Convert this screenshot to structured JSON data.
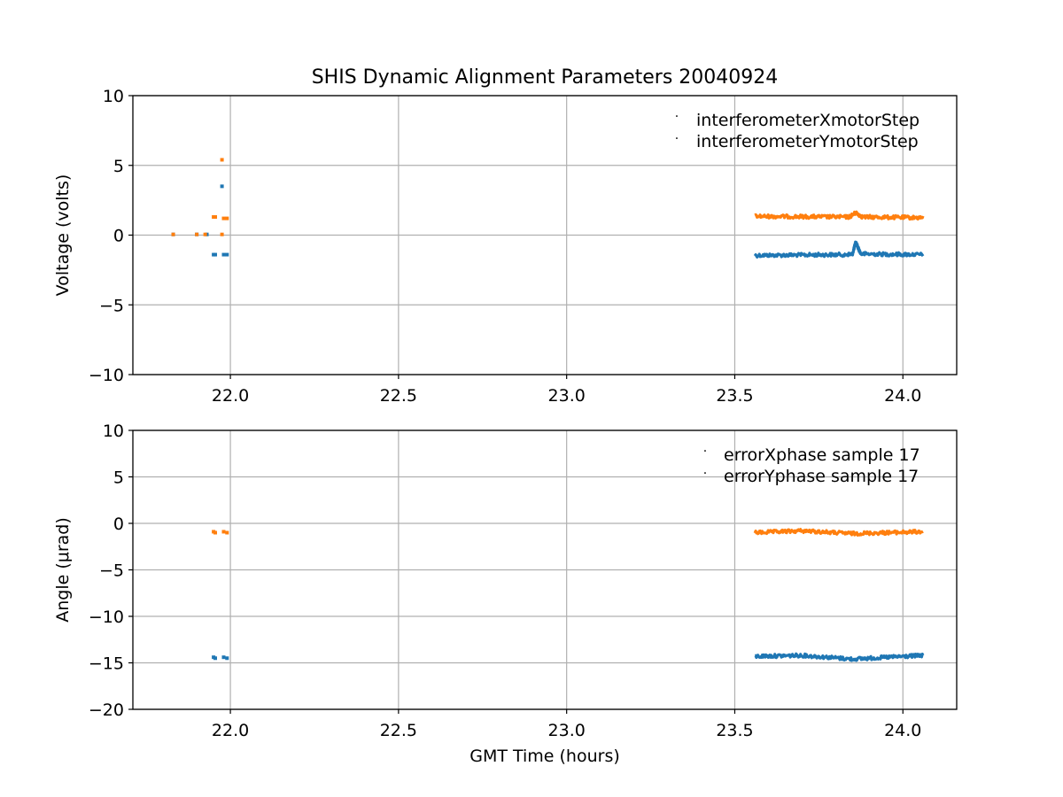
{
  "figure": {
    "title": "SHIS Dynamic Alignment Parameters 20040924",
    "colors": {
      "series1": "#1f77b4",
      "series2": "#ff7f0e",
      "grid": "#b0b0b0",
      "axis": "#000000"
    }
  },
  "chart_data": [
    {
      "type": "scatter",
      "xlabel": "",
      "ylabel": "Voltage (volts)",
      "xlim": [
        21.71,
        24.16
      ],
      "ylim": [
        -10,
        10
      ],
      "xticks": [
        "22.0",
        "22.5",
        "23.0",
        "23.5",
        "24.0"
      ],
      "yticks": [
        "10",
        "5",
        "0",
        "−5",
        "−10"
      ],
      "grid": true,
      "legend_position": "top-right",
      "series": [
        {
          "name": "interferometerXmotorStep",
          "points": [
            [
              21.83,
              0.05
            ],
            [
              21.9,
              0.05
            ],
            [
              21.93,
              0.05
            ],
            [
              21.95,
              -1.4
            ],
            [
              21.955,
              -1.4
            ],
            [
              21.975,
              3.5
            ],
            [
              21.98,
              -1.4
            ],
            [
              21.99,
              -1.4
            ]
          ],
          "segments": [
            {
              "x": [
                23.56,
                23.83
              ],
              "y": [
                -1.45,
                -1.4
              ]
            },
            {
              "x": [
                23.83,
                23.85
              ],
              "y": [
                -1.4,
                -1.35
              ]
            },
            {
              "x": [
                23.85,
                23.86
              ],
              "y": [
                -1.35,
                -0.5
              ]
            },
            {
              "x": [
                23.86,
                23.875
              ],
              "y": [
                -0.5,
                -1.35
              ]
            },
            {
              "x": [
                23.875,
                24.06
              ],
              "y": [
                -1.35,
                -1.4
              ]
            }
          ]
        },
        {
          "name": "interferometerYmotorStep",
          "points": [
            [
              21.83,
              0.05
            ],
            [
              21.9,
              0.05
            ],
            [
              21.925,
              0.05
            ],
            [
              21.95,
              1.3
            ],
            [
              21.955,
              1.3
            ],
            [
              21.975,
              5.4
            ],
            [
              21.975,
              0.05
            ],
            [
              21.98,
              1.2
            ],
            [
              21.99,
              1.2
            ]
          ],
          "segments": [
            {
              "x": [
                23.56,
                23.84
              ],
              "y": [
                1.35,
                1.3
              ]
            },
            {
              "x": [
                23.84,
                23.86
              ],
              "y": [
                1.3,
                1.6
              ]
            },
            {
              "x": [
                23.86,
                23.88
              ],
              "y": [
                1.6,
                1.3
              ]
            },
            {
              "x": [
                23.88,
                24.06
              ],
              "y": [
                1.3,
                1.25
              ]
            }
          ]
        }
      ]
    },
    {
      "type": "scatter",
      "xlabel": "GMT Time (hours)",
      "ylabel": "Angle (μrad)",
      "xlim": [
        21.71,
        24.16
      ],
      "ylim": [
        -20,
        10
      ],
      "xticks": [
        "22.0",
        "22.5",
        "23.0",
        "23.5",
        "24.0"
      ],
      "yticks": [
        "10",
        "5",
        "0",
        "−5",
        "−10",
        "−15",
        "−20"
      ],
      "grid": true,
      "legend_position": "top-right",
      "series": [
        {
          "name": "errorXphase sample 17",
          "points": [
            [
              21.95,
              -14.4
            ],
            [
              21.955,
              -14.5
            ],
            [
              21.98,
              -14.4
            ],
            [
              21.99,
              -14.5
            ]
          ],
          "segments": [
            {
              "x": [
                23.56,
                23.7
              ],
              "y": [
                -14.3,
                -14.2
              ]
            },
            {
              "x": [
                23.7,
                23.85
              ],
              "y": [
                -14.2,
                -14.6
              ]
            },
            {
              "x": [
                23.85,
                24.06
              ],
              "y": [
                -14.6,
                -14.2
              ]
            }
          ]
        },
        {
          "name": "errorYphase sample 17",
          "points": [
            [
              21.95,
              -0.9
            ],
            [
              21.955,
              -1.0
            ],
            [
              21.98,
              -0.9
            ],
            [
              21.99,
              -1.0
            ]
          ],
          "segments": [
            {
              "x": [
                23.56,
                23.7
              ],
              "y": [
                -1.0,
                -0.8
              ]
            },
            {
              "x": [
                23.7,
                23.85
              ],
              "y": [
                -0.8,
                -1.1
              ]
            },
            {
              "x": [
                23.85,
                24.06
              ],
              "y": [
                -1.1,
                -0.9
              ]
            }
          ]
        }
      ]
    }
  ]
}
